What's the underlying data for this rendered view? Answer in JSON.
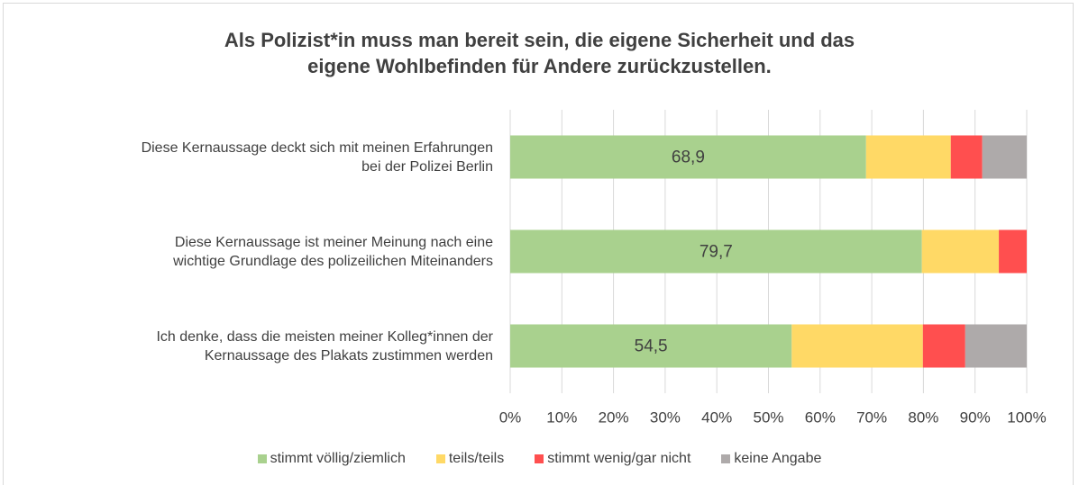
{
  "chart_data": {
    "type": "bar",
    "title": "Als Polizist*in muss man bereit sein, die eigene Sicherheit und das\neigene Wohlbefinden für Andere zurückzustellen.",
    "categories": [
      "Diese Kernaussage deckt sich mit meinen Erfahrungen\nbei der Polizei Berlin",
      "Diese Kernaussage ist meiner Meinung nach eine\nwichtige Grundlage des polizeilichen Miteinanders",
      "Ich denke, dass die meisten meiner Kolleg*innen der\nKernaussage des Plakats zustimmen werden"
    ],
    "series": [
      {
        "name": "stimmt völlig/ziemlich",
        "color": "#a9d18e",
        "values": [
          68.9,
          79.7,
          54.5
        ],
        "value_labels": [
          "68,9",
          "79,7",
          "54,5"
        ]
      },
      {
        "name": "teils/teils",
        "color": "#ffd966",
        "values": [
          16.4,
          14.9,
          25.4
        ]
      },
      {
        "name": "stimmt wenig/gar nicht",
        "color": "#ff4f4f",
        "values": [
          6.1,
          5.4,
          8.2
        ]
      },
      {
        "name": "keine Angabe",
        "color": "#aeaaaa",
        "values": [
          8.6,
          0,
          11.9
        ]
      }
    ],
    "xlim": [
      0,
      100
    ],
    "xticks": [
      {
        "value": 0,
        "label": "0%"
      },
      {
        "value": 10,
        "label": "10%"
      },
      {
        "value": 20,
        "label": "20%"
      },
      {
        "value": 30,
        "label": "30%"
      },
      {
        "value": 40,
        "label": "40%"
      },
      {
        "value": 50,
        "label": "50%"
      },
      {
        "value": 60,
        "label": "60%"
      },
      {
        "value": 70,
        "label": "70%"
      },
      {
        "value": 80,
        "label": "80%"
      },
      {
        "value": 90,
        "label": "90%"
      },
      {
        "value": 100,
        "label": "100%"
      }
    ],
    "grid": true,
    "legend": "bottom"
  }
}
